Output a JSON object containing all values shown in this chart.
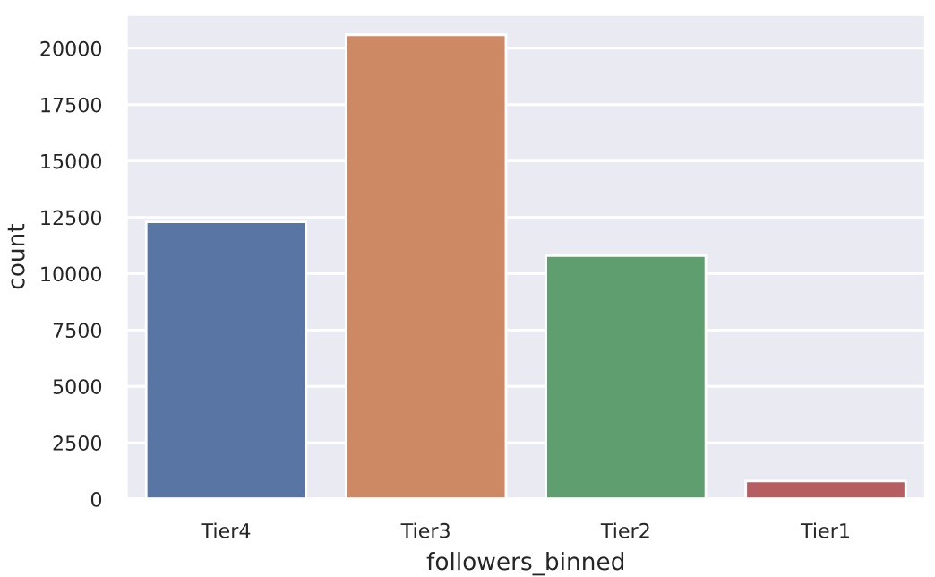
{
  "chart_data": {
    "type": "bar",
    "xlabel": "followers_binned",
    "ylabel": "count",
    "categories": [
      "Tier4",
      "Tier3",
      "Tier2",
      "Tier1"
    ],
    "values": [
      12300,
      20600,
      10800,
      800
    ],
    "colors": [
      "#5975a4",
      "#cc8963",
      "#5f9e6e",
      "#b55d60"
    ],
    "ylim": [
      0,
      21500
    ],
    "yticks": [
      0,
      2500,
      5000,
      7500,
      10000,
      12500,
      15000,
      17500,
      20000
    ],
    "grid": true
  }
}
